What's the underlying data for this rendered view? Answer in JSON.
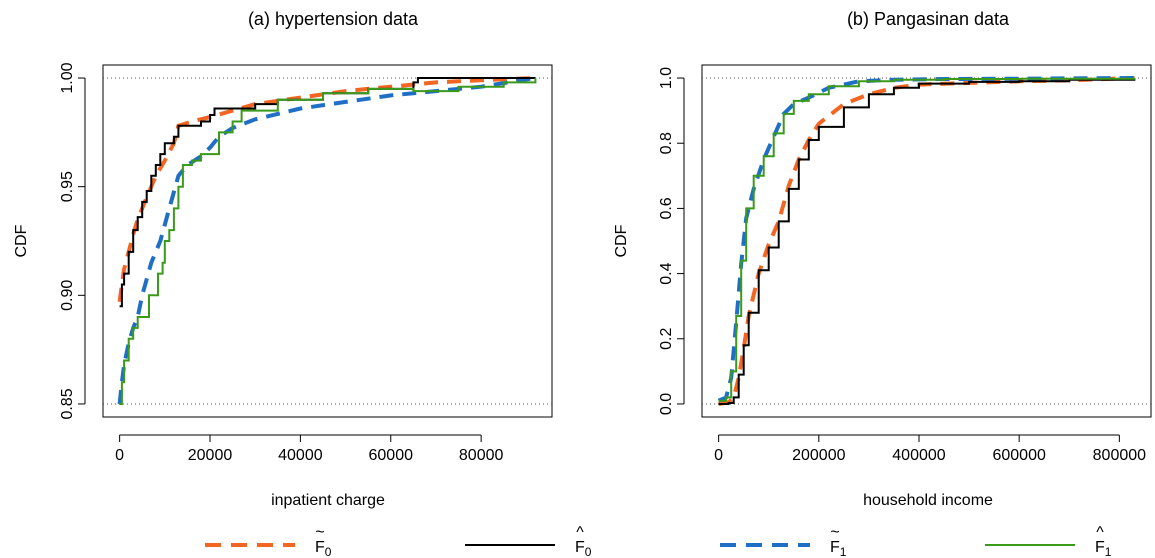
{
  "chart_data": [
    {
      "type": "line",
      "title": "(a) hypertension data",
      "xlabel": "inpatient charge",
      "ylabel": "CDF",
      "xlim": [
        0,
        92000
      ],
      "ylim": [
        0.85,
        1.0
      ],
      "xticks": [
        0,
        20000,
        40000,
        60000,
        80000
      ],
      "yticks": [
        0.85,
        0.9,
        0.95,
        1.0
      ],
      "ytick_labels": [
        "0.85",
        "0.90",
        "0.95",
        "1.00"
      ],
      "reference_lines_y": [
        0.85,
        1.0
      ],
      "series": [
        {
          "name_base": "F",
          "accent": "~",
          "sub": "0",
          "color": "#f26522",
          "style": "dashed",
          "points": [
            [
              0,
              0.897
            ],
            [
              500,
              0.905
            ],
            [
              1000,
              0.912
            ],
            [
              2000,
              0.92
            ],
            [
              3000,
              0.928
            ],
            [
              4000,
              0.935
            ],
            [
              5000,
              0.94
            ],
            [
              6000,
              0.945
            ],
            [
              8000,
              0.955
            ],
            [
              10000,
              0.962
            ],
            [
              12000,
              0.97
            ],
            [
              13000,
              0.978
            ],
            [
              16000,
              0.98
            ],
            [
              20000,
              0.982
            ],
            [
              25000,
              0.985
            ],
            [
              30000,
              0.988
            ],
            [
              40000,
              0.991
            ],
            [
              50000,
              0.994
            ],
            [
              60000,
              0.996
            ],
            [
              70000,
              0.998
            ],
            [
              80000,
              0.999
            ],
            [
              92000,
              1.0
            ]
          ]
        },
        {
          "name_base": "F",
          "accent": "^",
          "sub": "0",
          "color": "#000000",
          "style": "solid",
          "points": [
            [
              0,
              0.895
            ],
            [
              500,
              0.905
            ],
            [
              1000,
              0.91
            ],
            [
              2000,
              0.92
            ],
            [
              3000,
              0.93
            ],
            [
              4000,
              0.936
            ],
            [
              5000,
              0.943
            ],
            [
              6000,
              0.948
            ],
            [
              7000,
              0.955
            ],
            [
              8000,
              0.96
            ],
            [
              9000,
              0.965
            ],
            [
              10000,
              0.97
            ],
            [
              12000,
              0.973
            ],
            [
              13000,
              0.978
            ],
            [
              16000,
              0.978
            ],
            [
              18000,
              0.98
            ],
            [
              19000,
              0.98
            ],
            [
              20000,
              0.983
            ],
            [
              21000,
              0.986
            ],
            [
              27000,
              0.986
            ],
            [
              30000,
              0.988
            ],
            [
              35000,
              0.99
            ],
            [
              45000,
              0.993
            ],
            [
              55000,
              0.995
            ],
            [
              65000,
              0.998
            ],
            [
              66000,
              1.0
            ],
            [
              92000,
              1.0
            ]
          ]
        },
        {
          "name_base": "F",
          "accent": "~",
          "sub": "1",
          "color": "#1f6fc5",
          "style": "dashed",
          "points": [
            [
              0,
              0.85
            ],
            [
              500,
              0.86
            ],
            [
              1000,
              0.868
            ],
            [
              2000,
              0.878
            ],
            [
              3000,
              0.885
            ],
            [
              4000,
              0.89
            ],
            [
              5000,
              0.9
            ],
            [
              7000,
              0.915
            ],
            [
              9000,
              0.925
            ],
            [
              11000,
              0.94
            ],
            [
              13000,
              0.955
            ],
            [
              15000,
              0.96
            ],
            [
              18000,
              0.964
            ],
            [
              20000,
              0.968
            ],
            [
              22000,
              0.973
            ],
            [
              25000,
              0.977
            ],
            [
              30000,
              0.981
            ],
            [
              40000,
              0.986
            ],
            [
              50000,
              0.989
            ],
            [
              60000,
              0.992
            ],
            [
              70000,
              0.994
            ],
            [
              80000,
              0.996
            ],
            [
              92000,
              1.0
            ]
          ]
        },
        {
          "name_base": "F",
          "accent": "^",
          "sub": "1",
          "color": "#3a9a1a",
          "style": "solid",
          "points": [
            [
              0,
              0.85
            ],
            [
              500,
              0.86
            ],
            [
              1000,
              0.87
            ],
            [
              2000,
              0.88
            ],
            [
              3000,
              0.885
            ],
            [
              4000,
              0.89
            ],
            [
              6000,
              0.89
            ],
            [
              6500,
              0.9
            ],
            [
              8000,
              0.9
            ],
            [
              8500,
              0.91
            ],
            [
              9500,
              0.915
            ],
            [
              10000,
              0.925
            ],
            [
              11000,
              0.93
            ],
            [
              12000,
              0.94
            ],
            [
              13000,
              0.95
            ],
            [
              14000,
              0.96
            ],
            [
              16000,
              0.962
            ],
            [
              18000,
              0.965
            ],
            [
              20000,
              0.965
            ],
            [
              22000,
              0.975
            ],
            [
              25000,
              0.98
            ],
            [
              27000,
              0.985
            ],
            [
              35000,
              0.99
            ],
            [
              45000,
              0.993
            ],
            [
              55000,
              0.995
            ],
            [
              65000,
              0.994
            ],
            [
              75000,
              0.996
            ],
            [
              85000,
              0.998
            ],
            [
              92000,
              1.0
            ]
          ]
        }
      ]
    },
    {
      "type": "line",
      "title": "(b) Pangasinan data",
      "xlabel": "household income",
      "ylabel": "CDF",
      "xlim": [
        0,
        830000
      ],
      "ylim": [
        0.0,
        1.0
      ],
      "xticks": [
        0,
        200000,
        400000,
        600000,
        800000
      ],
      "yticks": [
        0.0,
        0.2,
        0.4,
        0.6,
        0.8,
        1.0
      ],
      "ytick_labels": [
        "0.0",
        "0.2",
        "0.4",
        "0.6",
        "0.8",
        "1.0"
      ],
      "reference_lines_y": [
        0.0,
        1.0
      ],
      "series": [
        {
          "name_base": "F",
          "accent": "~",
          "sub": "0",
          "color": "#f26522",
          "style": "dashed",
          "points": [
            [
              0,
              0.0
            ],
            [
              20000,
              0.005
            ],
            [
              30000,
              0.02
            ],
            [
              40000,
              0.08
            ],
            [
              50000,
              0.17
            ],
            [
              60000,
              0.27
            ],
            [
              80000,
              0.4
            ],
            [
              100000,
              0.49
            ],
            [
              120000,
              0.56
            ],
            [
              140000,
              0.67
            ],
            [
              160000,
              0.75
            ],
            [
              180000,
              0.81
            ],
            [
              200000,
              0.86
            ],
            [
              250000,
              0.92
            ],
            [
              300000,
              0.95
            ],
            [
              350000,
              0.97
            ],
            [
              400000,
              0.98
            ],
            [
              500000,
              0.985
            ],
            [
              600000,
              0.99
            ],
            [
              700000,
              0.993
            ],
            [
              830000,
              1.0
            ]
          ]
        },
        {
          "name_base": "F",
          "accent": "^",
          "sub": "0",
          "color": "#000000",
          "style": "solid",
          "points": [
            [
              0,
              0.0
            ],
            [
              20000,
              0.003
            ],
            [
              30000,
              0.02
            ],
            [
              40000,
              0.09
            ],
            [
              50000,
              0.18
            ],
            [
              60000,
              0.28
            ],
            [
              80000,
              0.41
            ],
            [
              100000,
              0.48
            ],
            [
              120000,
              0.56
            ],
            [
              140000,
              0.66
            ],
            [
              160000,
              0.75
            ],
            [
              180000,
              0.81
            ],
            [
              200000,
              0.85
            ],
            [
              250000,
              0.91
            ],
            [
              300000,
              0.95
            ],
            [
              350000,
              0.97
            ],
            [
              400000,
              0.983
            ],
            [
              500000,
              0.988
            ],
            [
              600000,
              0.99
            ],
            [
              700000,
              0.995
            ],
            [
              830000,
              1.0
            ]
          ]
        },
        {
          "name_base": "F",
          "accent": "~",
          "sub": "1",
          "color": "#1f6fc5",
          "style": "dashed",
          "points": [
            [
              0,
              0.01
            ],
            [
              15000,
              0.02
            ],
            [
              25000,
              0.08
            ],
            [
              35000,
              0.25
            ],
            [
              45000,
              0.43
            ],
            [
              55000,
              0.57
            ],
            [
              70000,
              0.66
            ],
            [
              90000,
              0.75
            ],
            [
              110000,
              0.82
            ],
            [
              130000,
              0.89
            ],
            [
              150000,
              0.92
            ],
            [
              180000,
              0.94
            ],
            [
              220000,
              0.97
            ],
            [
              280000,
              0.99
            ],
            [
              350000,
              0.995
            ],
            [
              450000,
              0.997
            ],
            [
              600000,
              0.998
            ],
            [
              830000,
              1.0
            ]
          ]
        },
        {
          "name_base": "F",
          "accent": "^",
          "sub": "1",
          "color": "#3a9a1a",
          "style": "solid",
          "points": [
            [
              0,
              0.01
            ],
            [
              15000,
              0.02
            ],
            [
              25000,
              0.1
            ],
            [
              35000,
              0.27
            ],
            [
              45000,
              0.44
            ],
            [
              55000,
              0.6
            ],
            [
              70000,
              0.7
            ],
            [
              90000,
              0.76
            ],
            [
              110000,
              0.83
            ],
            [
              130000,
              0.89
            ],
            [
              150000,
              0.93
            ],
            [
              180000,
              0.95
            ],
            [
              220000,
              0.975
            ],
            [
              280000,
              0.99
            ],
            [
              350000,
              0.995
            ],
            [
              450000,
              0.997
            ],
            [
              600000,
              0.998
            ],
            [
              830000,
              1.0
            ]
          ]
        }
      ]
    }
  ],
  "legend": [
    {
      "label_base": "F",
      "accent": "~",
      "sub": "0",
      "color": "#f26522",
      "style": "dashed"
    },
    {
      "label_base": "F",
      "accent": "^",
      "sub": "0",
      "color": "#000000",
      "style": "solid"
    },
    {
      "label_base": "F",
      "accent": "~",
      "sub": "1",
      "color": "#1f6fc5",
      "style": "dashed"
    },
    {
      "label_base": "F",
      "accent": "^",
      "sub": "1",
      "color": "#3a9a1a",
      "style": "solid"
    }
  ]
}
